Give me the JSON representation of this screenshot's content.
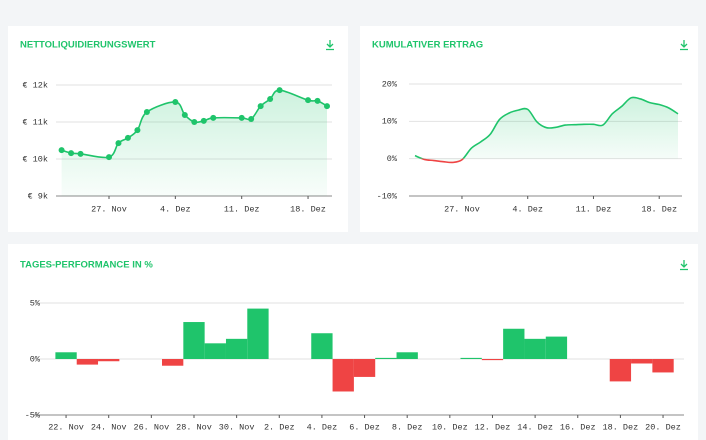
{
  "chart_data": [
    {
      "type": "line",
      "title": "NETTOLIQUIDIERUNGSWERT",
      "color": "#1fc46b",
      "markers": true,
      "smooth": true,
      "grid": true,
      "x": [
        "22. Nov",
        "23. Nov",
        "24. Nov",
        "27. Nov",
        "28. Nov",
        "29. Nov",
        "30. Nov",
        "1. Dez",
        "4. Dez",
        "5. Dez",
        "6. Dez",
        "7. Dez",
        "8. Dez",
        "11. Dez",
        "12. Dez",
        "13. Dez",
        "14. Dez",
        "15. Dez",
        "18. Dez",
        "19. Dez",
        "20. Dez"
      ],
      "values": [
        10240,
        10160,
        10140,
        10050,
        10430,
        10570,
        10780,
        11270,
        11540,
        11190,
        11000,
        11030,
        11110,
        11110,
        11080,
        11430,
        11620,
        11860,
        11590,
        11570,
        11430
      ],
      "xlim": [
        "22. Nov",
        "20. Dez"
      ],
      "xticks": [
        "27. Nov",
        "4. Dez",
        "11. Dez",
        "18. Dez"
      ],
      "ylim": [
        9000,
        12000
      ],
      "yticks": [
        {
          "value": 12000,
          "label": "€ 12k"
        },
        {
          "value": 11000,
          "label": "€ 11k"
        },
        {
          "value": 10000,
          "label": "€ 10k"
        },
        {
          "value": 9000,
          "label": "€ 9k"
        }
      ]
    },
    {
      "type": "line",
      "title": "KUMULATIVER ERTRAG",
      "color": "#1fc46b",
      "negative_color": "#ef4444",
      "markers": false,
      "smooth": true,
      "grid": true,
      "x": [
        "22. Nov",
        "23. Nov",
        "24. Nov",
        "25. Nov",
        "26. Nov",
        "27. Nov",
        "28. Nov",
        "29. Nov",
        "30. Nov",
        "1. Dez",
        "2. Dez",
        "3. Dez",
        "4. Dez",
        "5. Dez",
        "6. Dez",
        "7. Dez",
        "8. Dez",
        "9. Dez",
        "10. Dez",
        "11. Dez",
        "12. Dez",
        "13. Dez",
        "14. Dez",
        "15. Dez",
        "16. Dez",
        "17. Dez",
        "18. Dez",
        "19. Dez",
        "20. Dez"
      ],
      "values": [
        0.8,
        -0.2,
        -0.5,
        -0.8,
        -1.0,
        -0.3,
        2.8,
        4.5,
        6.5,
        10.5,
        12.2,
        13.0,
        13.2,
        9.8,
        8.3,
        8.4,
        9.0,
        9.1,
        9.2,
        9.2,
        9.0,
        12.0,
        14.0,
        16.3,
        16.0,
        15.0,
        14.5,
        13.6,
        12.0
      ],
      "xlim": [
        "22. Nov",
        "20. Dez"
      ],
      "xticks": [
        "27. Nov",
        "4. Dez",
        "11. Dez",
        "18. Dez"
      ],
      "ylim": [
        -10,
        20
      ],
      "yticks": [
        {
          "value": 20,
          "label": "20%"
        },
        {
          "value": 10,
          "label": "10%"
        },
        {
          "value": 0,
          "label": "0%"
        },
        {
          "value": -10,
          "label": "-10%"
        }
      ]
    },
    {
      "type": "bar",
      "title": "TAGES-PERFORMANCE IN %",
      "color": "#1fc46b",
      "negative_color": "#ef4444",
      "grid": true,
      "categories": [
        "22. Nov",
        null,
        "24. Nov",
        null,
        "26. Nov",
        null,
        "28. Nov",
        null,
        "30. Nov",
        null,
        "2. Dez",
        null,
        "4. Dez",
        null,
        "6. Dez",
        null,
        "8. Dez",
        null,
        "10. Dez",
        null,
        "12. Dez",
        null,
        "14. Dez",
        null,
        "16. Dez",
        null,
        "18. Dez",
        null,
        "20. Dez"
      ],
      "values": [
        0.6,
        -0.5,
        -0.2,
        null,
        null,
        -0.6,
        3.3,
        1.4,
        1.8,
        4.5,
        null,
        null,
        2.3,
        -2.9,
        -1.6,
        0.1,
        0.6,
        null,
        null,
        0.1,
        -0.1,
        2.7,
        1.8,
        2.0,
        null,
        null,
        -2.0,
        -0.4,
        -1.2
      ],
      "ylim": [
        -5,
        5
      ],
      "yticks": [
        {
          "value": 5,
          "label": "5%"
        },
        {
          "value": 0,
          "label": "0%"
        },
        {
          "value": -5,
          "label": "-5%"
        }
      ]
    }
  ]
}
